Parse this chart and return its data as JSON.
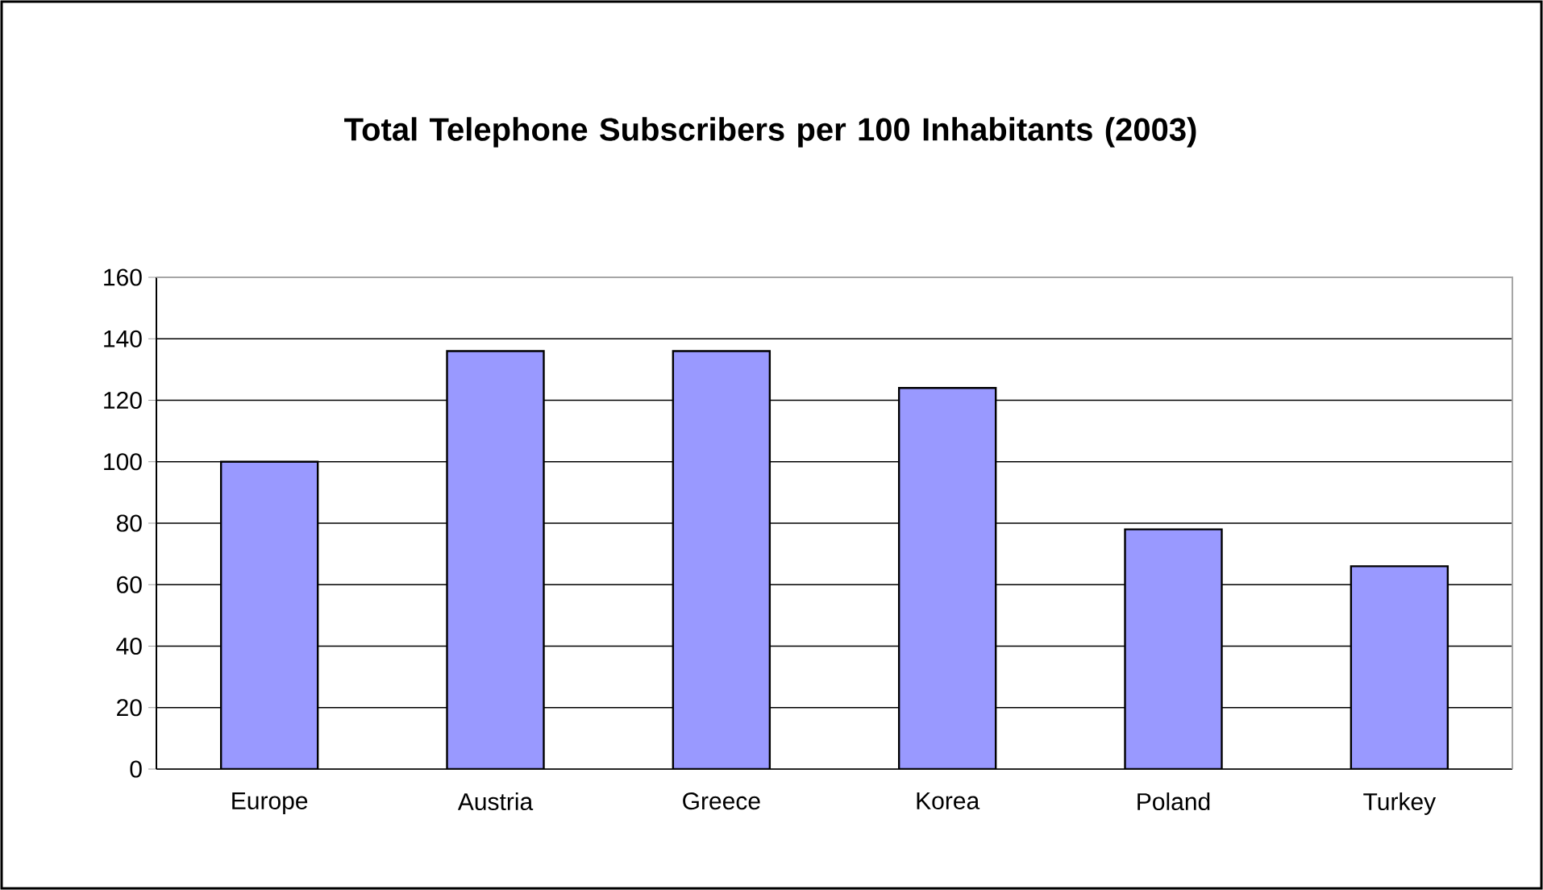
{
  "chart_data": {
    "type": "bar",
    "title": "Total Telephone Subscribers per 100 Inhabitants (2003)",
    "categories": [
      "Europe",
      "Austria",
      "Greece",
      "Korea",
      "Poland",
      "Turkey"
    ],
    "values": [
      100,
      136,
      136,
      124,
      78,
      66
    ],
    "color": "#9999ff",
    "ylim": [
      0,
      160
    ],
    "yticks": [
      0,
      20,
      40,
      60,
      80,
      100,
      120,
      140,
      160
    ],
    "grid": "y"
  }
}
